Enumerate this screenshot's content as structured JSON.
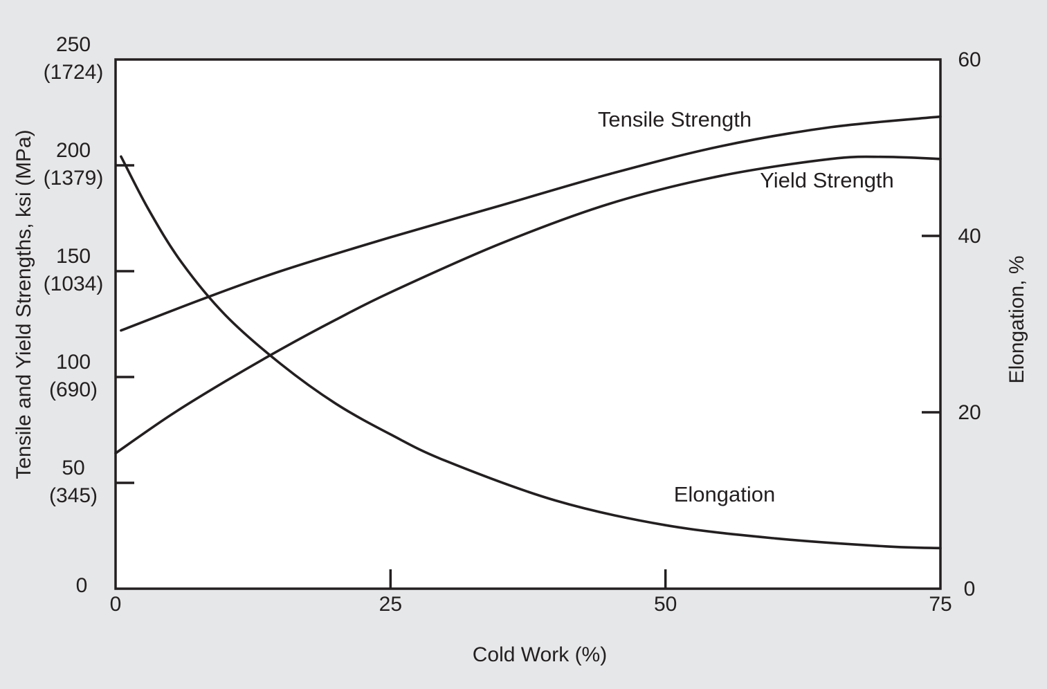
{
  "chart_data": {
    "type": "line",
    "title": "",
    "colors": {
      "background": "#e6e7e8",
      "plot_area": "#ffffff",
      "ink": "#231f20"
    },
    "grid": false,
    "legend": "none",
    "x_axis": {
      "label": "Cold Work (%)",
      "range": [
        0,
        75
      ],
      "ticks": [
        {
          "value": 0,
          "label": "0"
        },
        {
          "value": 25,
          "label": "25"
        },
        {
          "value": 50,
          "label": "50"
        },
        {
          "value": 75,
          "label": "75"
        }
      ]
    },
    "y_left_axis": {
      "label": "Tensile and Yield Strengths, ksi (MPa)",
      "range": [
        0,
        250
      ],
      "ticks": [
        {
          "value": 0,
          "label": "0",
          "sublabel": ""
        },
        {
          "value": 50,
          "label": "50",
          "sublabel": "(345)"
        },
        {
          "value": 100,
          "label": "100",
          "sublabel": "(690)"
        },
        {
          "value": 150,
          "label": "150",
          "sublabel": "(1034)"
        },
        {
          "value": 200,
          "label": "200",
          "sublabel": "(1379)"
        },
        {
          "value": 250,
          "label": "250",
          "sublabel": "(1724)"
        }
      ]
    },
    "y_right_axis": {
      "label": "Elongation, %",
      "range": [
        0,
        60
      ],
      "ticks": [
        {
          "value": 0,
          "label": "0"
        },
        {
          "value": 20,
          "label": "20"
        },
        {
          "value": 40,
          "label": "40"
        },
        {
          "value": 60,
          "label": "60"
        }
      ]
    },
    "series": [
      {
        "name": "Tensile Strength",
        "axis": "left",
        "x": [
          0.5,
          8,
          15,
          25,
          35,
          45,
          55,
          65,
          75
        ],
        "y": [
          122,
          137,
          150,
          166,
          181,
          196,
          209,
          218,
          223
        ]
      },
      {
        "name": "Yield Strength",
        "axis": "left",
        "x": [
          0,
          5,
          10,
          15,
          20,
          25,
          35,
          45,
          55,
          65,
          70,
          75
        ],
        "y": [
          64,
          82,
          98,
          113,
          127,
          140,
          163,
          182,
          195,
          203,
          204,
          203
        ]
      },
      {
        "name": "Elongation",
        "axis": "right",
        "x": [
          0.5,
          3,
          6,
          10,
          15,
          20,
          25,
          30,
          40,
          50,
          60,
          70,
          75
        ],
        "y": [
          49,
          43,
          37,
          31,
          25.5,
          21,
          17.5,
          14.5,
          10,
          7.2,
          5.7,
          4.8,
          4.6
        ]
      }
    ]
  }
}
